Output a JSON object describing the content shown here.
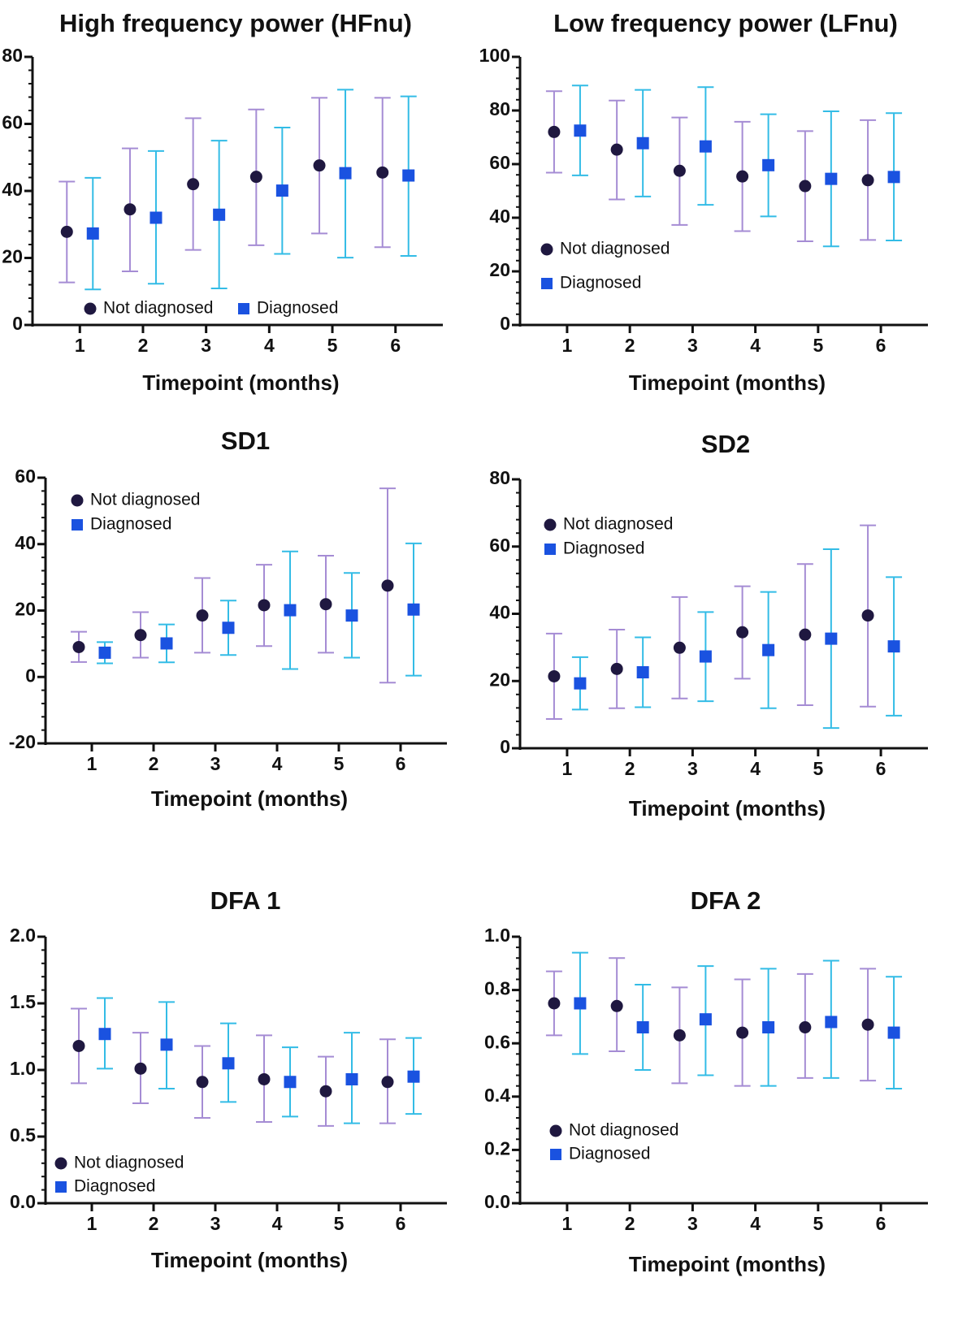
{
  "colors": {
    "not_diagnosed_marker": "#1f1840",
    "not_diagnosed_error": "#a58cd4",
    "diagnosed_marker": "#1a52e0",
    "diagnosed_error": "#33bce6",
    "axis": "#111111"
  },
  "chart_data": [
    {
      "type": "scatter",
      "title": "High frequency power (HFnu)",
      "xlabel": "Timepoint (months)",
      "ylabel": "",
      "categories": [
        "1",
        "2",
        "3",
        "4",
        "5",
        "6"
      ],
      "ylim": [
        0,
        80
      ],
      "yticks": [
        0,
        20,
        40,
        60,
        80
      ],
      "ytick_labels": [
        "0",
        "20",
        "40",
        "60",
        "80"
      ],
      "legend_position": "bottom-left, horizontal",
      "series": [
        {
          "name": "Not diagnosed",
          "values": [
            27.8,
            34.5,
            42.0,
            44.2,
            47.6,
            45.5
          ],
          "err_low": [
            12.7,
            16.0,
            22.4,
            23.8,
            27.3,
            23.2
          ],
          "err_high": [
            42.8,
            52.7,
            61.7,
            64.3,
            67.8,
            67.8
          ]
        },
        {
          "name": "Diagnosed",
          "values": [
            27.3,
            32.0,
            32.9,
            40.1,
            45.3,
            44.6
          ],
          "err_low": [
            10.6,
            12.3,
            10.9,
            21.2,
            20.1,
            20.6
          ],
          "err_high": [
            43.9,
            51.9,
            55.0,
            58.9,
            70.2,
            68.2
          ]
        }
      ]
    },
    {
      "type": "scatter",
      "title": "Low frequency power (LFnu)",
      "xlabel": "Timepoint (months)",
      "ylabel": "",
      "categories": [
        "1",
        "2",
        "3",
        "4",
        "5",
        "6"
      ],
      "ylim": [
        0,
        100
      ],
      "yticks": [
        0,
        20,
        40,
        60,
        80,
        100
      ],
      "ytick_labels": [
        "0",
        "20",
        "40",
        "60",
        "80",
        "100"
      ],
      "legend_position": "left, stacked",
      "series": [
        {
          "name": "Not diagnosed",
          "values": [
            72.0,
            65.4,
            57.5,
            55.4,
            51.8,
            54.0
          ],
          "err_low": [
            56.8,
            46.8,
            37.3,
            35.0,
            31.2,
            31.7
          ],
          "err_high": [
            87.2,
            83.7,
            77.4,
            75.8,
            72.3,
            76.4
          ]
        },
        {
          "name": "Diagnosed",
          "values": [
            72.5,
            67.8,
            66.6,
            59.6,
            54.5,
            55.2
          ],
          "err_low": [
            55.8,
            47.9,
            44.8,
            40.5,
            29.3,
            31.5
          ],
          "err_high": [
            89.3,
            87.7,
            88.7,
            78.6,
            79.7,
            79.0
          ]
        }
      ]
    },
    {
      "type": "scatter",
      "title": "SD1",
      "xlabel": "Timepoint (months)",
      "ylabel": "",
      "categories": [
        "1",
        "2",
        "3",
        "4",
        "5",
        "6"
      ],
      "ylim": [
        -20,
        60
      ],
      "yticks": [
        -20,
        0,
        20,
        40,
        60
      ],
      "ytick_labels": [
        "-20",
        "0",
        "20",
        "40",
        "60"
      ],
      "legend_position": "top-left, stacked",
      "series": [
        {
          "name": "Not diagnosed",
          "values": [
            9.0,
            12.6,
            18.5,
            21.6,
            21.9,
            27.5
          ],
          "err_low": [
            4.5,
            5.8,
            7.3,
            9.3,
            7.3,
            -1.7
          ],
          "err_high": [
            13.6,
            19.5,
            29.8,
            33.8,
            36.5,
            56.8
          ]
        },
        {
          "name": "Diagnosed",
          "values": [
            7.3,
            10.1,
            14.8,
            20.1,
            18.5,
            20.3
          ],
          "err_low": [
            4.1,
            4.4,
            6.6,
            2.4,
            5.8,
            0.4
          ],
          "err_high": [
            10.5,
            15.8,
            23.0,
            37.8,
            31.3,
            40.2
          ]
        }
      ]
    },
    {
      "type": "scatter",
      "title": "SD2",
      "xlabel": "Timepoint (months)",
      "ylabel": "",
      "categories": [
        "1",
        "2",
        "3",
        "4",
        "5",
        "6"
      ],
      "ylim": [
        0,
        80
      ],
      "yticks": [
        0,
        20,
        40,
        60,
        80
      ],
      "ytick_labels": [
        "0",
        "20",
        "40",
        "60",
        "80"
      ],
      "legend_position": "top-left, stacked",
      "series": [
        {
          "name": "Not diagnosed",
          "values": [
            21.4,
            23.6,
            29.9,
            34.5,
            33.8,
            39.5
          ],
          "err_low": [
            8.7,
            11.9,
            14.8,
            20.7,
            12.8,
            12.4
          ],
          "err_high": [
            34.1,
            35.3,
            45.0,
            48.2,
            54.8,
            66.3
          ]
        },
        {
          "name": "Diagnosed",
          "values": [
            19.3,
            22.6,
            27.3,
            29.2,
            32.6,
            30.3
          ],
          "err_low": [
            11.5,
            12.2,
            14.0,
            11.9,
            6.0,
            9.7
          ],
          "err_high": [
            27.1,
            33.0,
            40.5,
            46.5,
            59.2,
            50.9
          ]
        }
      ]
    },
    {
      "type": "scatter",
      "title": "DFA 1",
      "xlabel": "Timepoint (months)",
      "ylabel": "",
      "categories": [
        "1",
        "2",
        "3",
        "4",
        "5",
        "6"
      ],
      "ylim": [
        0,
        2.0
      ],
      "yticks": [
        0,
        0.5,
        1.0,
        1.5,
        2.0
      ],
      "ytick_labels": [
        "0.0",
        "0.5",
        "1.0",
        "1.5",
        "2.0"
      ],
      "legend_position": "bottom-left, stacked",
      "series": [
        {
          "name": "Not diagnosed",
          "values": [
            1.18,
            1.01,
            0.91,
            0.93,
            0.84,
            0.91
          ],
          "err_low": [
            0.9,
            0.75,
            0.64,
            0.61,
            0.58,
            0.6
          ],
          "err_high": [
            1.46,
            1.28,
            1.18,
            1.26,
            1.1,
            1.23
          ]
        },
        {
          "name": "Diagnosed",
          "values": [
            1.27,
            1.19,
            1.05,
            0.91,
            0.93,
            0.95
          ],
          "err_low": [
            1.01,
            0.86,
            0.76,
            0.65,
            0.6,
            0.67
          ],
          "err_high": [
            1.54,
            1.51,
            1.35,
            1.17,
            1.28,
            1.24
          ]
        }
      ]
    },
    {
      "type": "scatter",
      "title": "DFA 2",
      "xlabel": "Timepoint (months)",
      "ylabel": "",
      "categories": [
        "1",
        "2",
        "3",
        "4",
        "5",
        "6"
      ],
      "ylim": [
        0,
        1.0
      ],
      "yticks": [
        0,
        0.2,
        0.4,
        0.6,
        0.8,
        1.0
      ],
      "ytick_labels": [
        "0.0",
        "0.2",
        "0.4",
        "0.6",
        "0.8",
        "1.0"
      ],
      "legend_position": "bottom-left, stacked",
      "series": [
        {
          "name": "Not diagnosed",
          "values": [
            0.75,
            0.74,
            0.63,
            0.64,
            0.66,
            0.67
          ],
          "err_low": [
            0.63,
            0.57,
            0.45,
            0.44,
            0.47,
            0.46
          ],
          "err_high": [
            0.87,
            0.92,
            0.81,
            0.84,
            0.86,
            0.88
          ]
        },
        {
          "name": "Diagnosed",
          "values": [
            0.75,
            0.66,
            0.69,
            0.66,
            0.68,
            0.64
          ],
          "err_low": [
            0.56,
            0.5,
            0.48,
            0.44,
            0.47,
            0.43
          ],
          "err_high": [
            0.94,
            0.82,
            0.89,
            0.88,
            0.91,
            0.85
          ]
        }
      ]
    }
  ]
}
